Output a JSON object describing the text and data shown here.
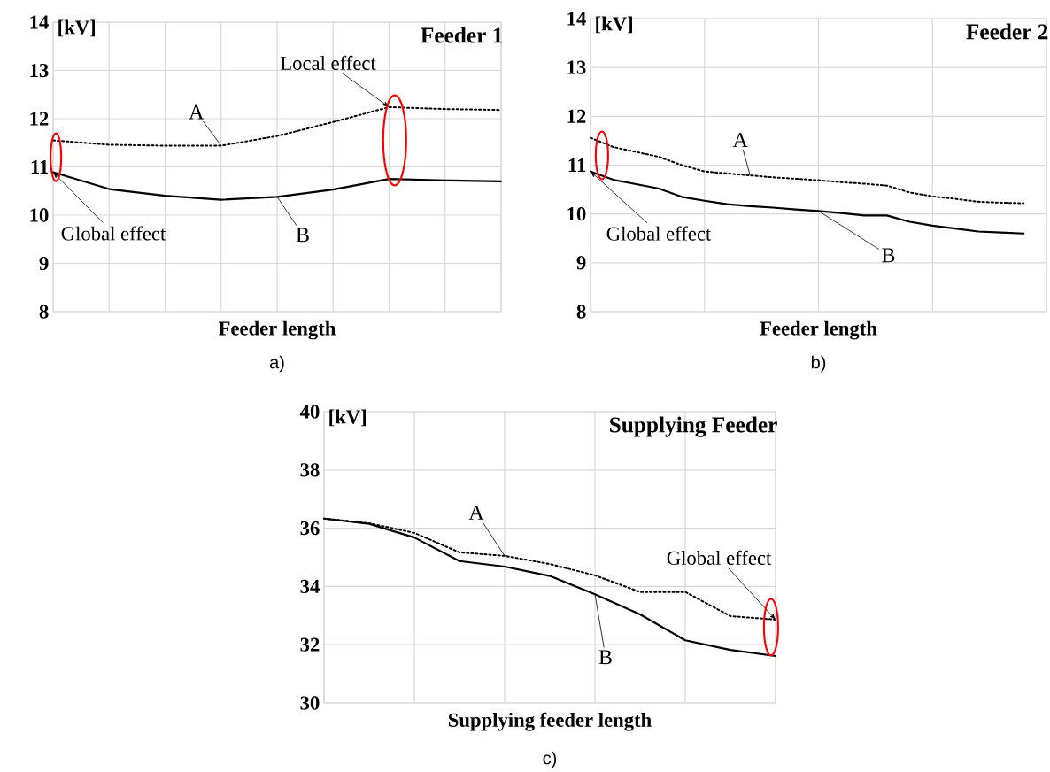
{
  "chart_data": [
    {
      "type": "line",
      "title": "Feeder 1",
      "xlabel": "Feeder length",
      "ylabel": "[kV]",
      "categories": [
        null,
        null,
        null,
        null,
        null,
        null,
        null,
        null,
        null
      ],
      "series": [
        {
          "name": "A",
          "color": "#000000",
          "line_style": "dotted",
          "values": [
            11.55,
            11.46,
            11.44,
            11.44,
            11.64,
            11.93,
            12.24,
            12.2,
            12.18
          ]
        },
        {
          "name": "B",
          "color": "#000000",
          "line_style": "solid",
          "values": [
            10.89,
            10.54,
            10.4,
            10.32,
            10.38,
            10.53,
            10.75,
            10.72,
            10.7
          ]
        }
      ],
      "ylim": [
        8,
        14
      ],
      "yticks": [
        8,
        9,
        10,
        11,
        12,
        13,
        14
      ],
      "grid": true,
      "marker": "none",
      "tick_labels": "y",
      "annotations": [
        "Global effect",
        "Local effect",
        "a)"
      ]
    },
    {
      "type": "line",
      "title": "Feeder 2",
      "xlabel": "Feeder length",
      "ylabel": "[kV]",
      "categories": [
        null,
        null,
        null,
        null,
        null,
        null,
        null,
        null,
        null,
        null,
        null,
        null,
        null,
        null,
        null,
        null,
        null,
        null,
        null,
        null
      ],
      "series": [
        {
          "name": "A",
          "color": "#000000",
          "line_style": "dotted",
          "values": [
            11.56,
            11.37,
            11.27,
            11.17,
            11.0,
            10.87,
            10.83,
            10.79,
            10.75,
            10.72,
            10.69,
            10.65,
            10.62,
            10.58,
            10.44,
            10.36,
            10.31,
            10.25,
            10.23,
            10.22
          ]
        },
        {
          "name": "B",
          "color": "#000000",
          "line_style": "solid",
          "values": [
            10.87,
            10.7,
            10.61,
            10.52,
            10.35,
            10.27,
            10.2,
            10.16,
            10.13,
            10.09,
            10.06,
            10.02,
            9.97,
            9.97,
            9.84,
            9.76,
            9.7,
            9.64,
            9.62,
            9.6
          ]
        }
      ],
      "ylim": [
        8,
        14
      ],
      "yticks": [
        8,
        9,
        10,
        11,
        12,
        13,
        14
      ],
      "grid": true,
      "marker": "none",
      "tick_labels": "y",
      "annotations": [
        "Global effect",
        "b)"
      ]
    },
    {
      "type": "line",
      "title": "Supplying Feeder",
      "xlabel": "Supplying feeder length",
      "ylabel": "[kV]",
      "categories": [
        null,
        null,
        null,
        null,
        null,
        null,
        null,
        null,
        null,
        null,
        null
      ],
      "series": [
        {
          "name": "A",
          "color": "#000000",
          "line_style": "dotted",
          "values": [
            36.33,
            36.17,
            35.84,
            35.17,
            35.05,
            34.77,
            34.38,
            33.81,
            33.81,
            32.98,
            32.86
          ]
        },
        {
          "name": "B",
          "color": "#000000",
          "line_style": "solid",
          "values": [
            36.33,
            36.15,
            35.68,
            34.87,
            34.68,
            34.36,
            33.73,
            33.04,
            32.15,
            31.82,
            31.61
          ]
        }
      ],
      "ylim": [
        30,
        40
      ],
      "yticks": [
        30,
        32,
        34,
        36,
        38,
        40
      ],
      "grid": true,
      "marker": "none",
      "tick_labels": "y",
      "annotations": [
        "Global effect",
        "c)"
      ]
    }
  ]
}
